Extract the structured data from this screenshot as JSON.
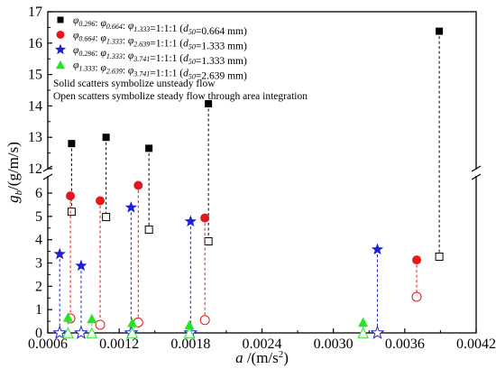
{
  "chart_data": {
    "type": "scatter",
    "xlabel_symbol": "a",
    "xlabel_unit": " /(m/s",
    "xlabel_sup": "2",
    "xlabel_close": ")",
    "ylabel_symbol": "g",
    "ylabel_sub": "b",
    "ylabel_unit": "/(g/m/s)",
    "xlim": [
      0.0006,
      0.0042
    ],
    "x_ticks": [
      0.0006,
      0.0012,
      0.0018,
      0.0024,
      0.003,
      0.0036,
      0.0042
    ],
    "x_tick_labels": [
      "0.0006",
      "0.0012",
      "0.0018",
      "0.0024",
      "0.0030",
      "0.0036",
      "0.0042"
    ],
    "y_lower_range": [
      0,
      6.5
    ],
    "y_upper_range": [
      12,
      17
    ],
    "y_lower_ticks": [
      0,
      1,
      2,
      3,
      4,
      5,
      6
    ],
    "y_lower_tick_labels": [
      "0",
      "1",
      "2",
      "3",
      "4",
      "5",
      "6"
    ],
    "y_upper_ticks": [
      12,
      13,
      14,
      15,
      16,
      17
    ],
    "y_upper_tick_labels": [
      "12",
      "13",
      "14",
      "15",
      "16",
      "17"
    ],
    "notes": [
      "Solid scatters symbolize unsteady flow",
      "Open scatters symbolize steady flow through area integration"
    ],
    "series": [
      {
        "marker": "square",
        "color": "#000000",
        "legend_parts": [
          [
            "φ",
            "it"
          ],
          [
            "0.296",
            "sub"
          ],
          [
            ":  ",
            "n"
          ],
          [
            "φ",
            "it"
          ],
          [
            "0.664",
            "sub"
          ],
          [
            ":  ",
            "n"
          ],
          [
            "φ",
            "it"
          ],
          [
            "1.333",
            "sub"
          ],
          [
            "=1:1:1 (",
            "n"
          ],
          [
            "d",
            "it"
          ],
          [
            "50",
            "sub"
          ],
          [
            "=0.664 mm)",
            "n"
          ]
        ],
        "points": [
          {
            "x": 0.0008,
            "unsteady": 12.8,
            "steady": 5.2
          },
          {
            "x": 0.00109,
            "unsteady": 13.0,
            "steady": 4.97
          },
          {
            "x": 0.00145,
            "unsteady": 12.65,
            "steady": 4.43
          },
          {
            "x": 0.00195,
            "unsteady": 14.07,
            "steady": 3.93
          },
          {
            "x": 0.00389,
            "unsteady": 16.38,
            "steady": 3.27
          }
        ]
      },
      {
        "marker": "circle",
        "color": "#e8161b",
        "legend_parts": [
          [
            "φ",
            "it"
          ],
          [
            "0.664",
            "sub"
          ],
          [
            ":  ",
            "n"
          ],
          [
            "φ",
            "it"
          ],
          [
            "1.333",
            "sub"
          ],
          [
            ":  ",
            "n"
          ],
          [
            "φ",
            "it"
          ],
          [
            "2.639",
            "sub"
          ],
          [
            "=1:1:1 (",
            "n"
          ],
          [
            "d",
            "it"
          ],
          [
            "50",
            "sub"
          ],
          [
            "=1.333 mm)",
            "n"
          ]
        ],
        "points": [
          {
            "x": 0.00079,
            "unsteady": 5.88,
            "steady": 0.62
          },
          {
            "x": 0.00104,
            "unsteady": 5.67,
            "steady": 0.35
          },
          {
            "x": 0.00136,
            "unsteady": 6.33,
            "steady": 0.45
          },
          {
            "x": 0.00192,
            "unsteady": 4.93,
            "steady": 0.55
          },
          {
            "x": 0.0037,
            "unsteady": 3.13,
            "steady": 1.55
          }
        ]
      },
      {
        "marker": "star",
        "color": "#1f1fd6",
        "legend_parts": [
          [
            "φ",
            "it"
          ],
          [
            "0.296",
            "sub"
          ],
          [
            ":  ",
            "n"
          ],
          [
            "φ",
            "it"
          ],
          [
            "1.333",
            "sub"
          ],
          [
            ":  ",
            "n"
          ],
          [
            "φ",
            "it"
          ],
          [
            "3.741",
            "sub"
          ],
          [
            "=1:1:1 (",
            "n"
          ],
          [
            "d",
            "it"
          ],
          [
            "50",
            "sub"
          ],
          [
            "=1.333 mm)",
            "n"
          ]
        ],
        "points": [
          {
            "x": 0.0007,
            "unsteady": 3.38,
            "steady": 0.0
          },
          {
            "x": 0.00088,
            "unsteady": 2.88,
            "steady": 0.0
          },
          {
            "x": 0.0013,
            "unsteady": 5.38,
            "steady": 0.0
          },
          {
            "x": 0.0018,
            "unsteady": 4.78,
            "steady": 0.0
          },
          {
            "x": 0.00337,
            "unsteady": 3.58,
            "steady": 0.0
          }
        ]
      },
      {
        "marker": "triangle",
        "color": "#22e622",
        "legend_parts": [
          [
            "φ",
            "it"
          ],
          [
            "1.333",
            "sub"
          ],
          [
            ":  ",
            "n"
          ],
          [
            "φ",
            "it"
          ],
          [
            "2.639",
            "sub"
          ],
          [
            ":  ",
            "n"
          ],
          [
            "φ",
            "it"
          ],
          [
            "3.741",
            "sub"
          ],
          [
            "=1:1:1 (",
            "n"
          ],
          [
            "d",
            "it"
          ],
          [
            "50",
            "sub"
          ],
          [
            "=2.639 mm)",
            "n"
          ]
        ],
        "points": [
          {
            "x": 0.00077,
            "unsteady": 0.68,
            "steady": 0.0
          },
          {
            "x": 0.00097,
            "unsteady": 0.62,
            "steady": 0.0
          },
          {
            "x": 0.00131,
            "unsteady": 0.45,
            "steady": 0.0
          },
          {
            "x": 0.00179,
            "unsteady": 0.35,
            "steady": 0.0
          },
          {
            "x": 0.00325,
            "unsteady": 0.47,
            "steady": 0.0
          }
        ]
      }
    ]
  }
}
